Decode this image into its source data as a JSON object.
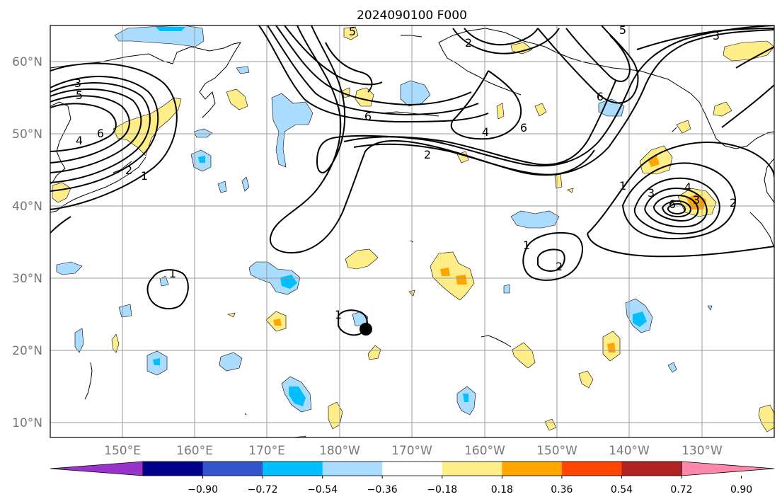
{
  "title": "2024090100 F000",
  "lat_labels": [
    "60°N",
    "50°N",
    "40°N",
    "30°N",
    "20°N",
    "10°N"
  ],
  "lon_labels": [
    "150°E",
    "160°E",
    "170°E",
    "180°W",
    "170°W",
    "160°W",
    "150°W",
    "140°W",
    "130°W"
  ],
  "colorbar": {
    "colors": [
      "#9933cc",
      "#00008b",
      "#3355cc",
      "#00bfff",
      "#aadcff",
      "#ffffff",
      "#ffee88",
      "#ffa500",
      "#ff4500",
      "#b22222",
      "#ff88aa"
    ],
    "labels": [
      "−0.90",
      "−0.72",
      "−0.54",
      "−0.36",
      "−0.18",
      "0.18",
      "0.36",
      "0.54",
      "0.72",
      "0.90"
    ]
  },
  "contour_labels": [
    "3",
    "5",
    "6",
    "4",
    "2",
    "1",
    "5",
    "2",
    "6",
    "4",
    "6",
    "2",
    "3",
    "6",
    "1",
    "3",
    "4",
    "3",
    "6",
    "5",
    "2",
    "1",
    "2",
    "1",
    "1"
  ],
  "map_colors": {
    "positive_light": "#ffee88",
    "positive_mid": "#ffa500",
    "negative_light": "#aadcff",
    "negative_mid": "#00bfff",
    "contour": "#000000",
    "grid": "#999999",
    "coast": "#000000"
  },
  "marker": "storm-center-dot"
}
